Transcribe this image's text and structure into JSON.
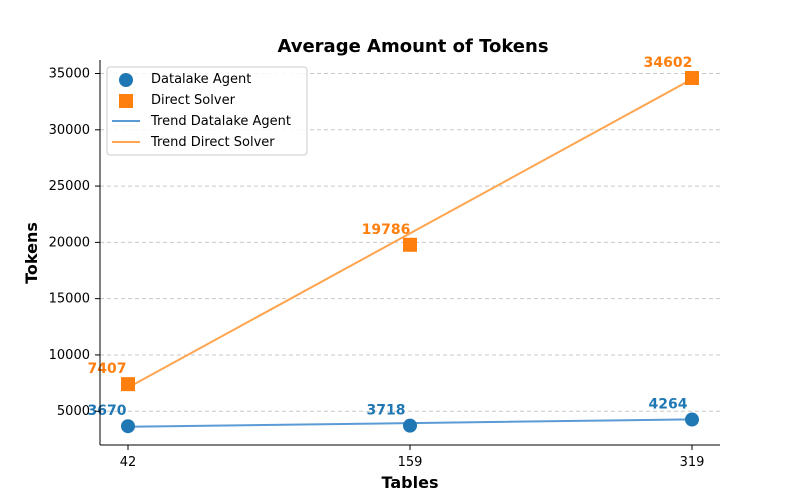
{
  "chart_data": {
    "type": "scatter",
    "title": "Average Amount of Tokens",
    "xlabel": "Tables",
    "ylabel": "Tokens",
    "categories": [
      "42",
      "159",
      "319"
    ],
    "ylim": [
      2000,
      36200
    ],
    "yticks": [
      5000,
      10000,
      15000,
      20000,
      25000,
      30000,
      35000
    ],
    "grid": "y-dashed",
    "legend_position": "top-left",
    "series": [
      {
        "name": "Datalake Agent",
        "marker": "circle",
        "color": "#1f77b4",
        "values": [
          3670,
          3718,
          4264
        ]
      },
      {
        "name": "Direct Solver",
        "marker": "square",
        "color": "#ff7f0e",
        "values": [
          7407,
          19786,
          34602
        ]
      }
    ],
    "trendlines": [
      {
        "name": "Trend Datalake Agent",
        "color": "#5b9bd5",
        "values": [
          3620,
          3947,
          4274
        ]
      },
      {
        "name": "Trend Direct Solver",
        "color": "#ffa54f",
        "values": [
          7100,
          20800,
          34500
        ]
      }
    ],
    "legend": [
      "Datalake Agent",
      "Direct Solver",
      "Trend Datalake Agent",
      "Trend Direct Solver"
    ]
  }
}
